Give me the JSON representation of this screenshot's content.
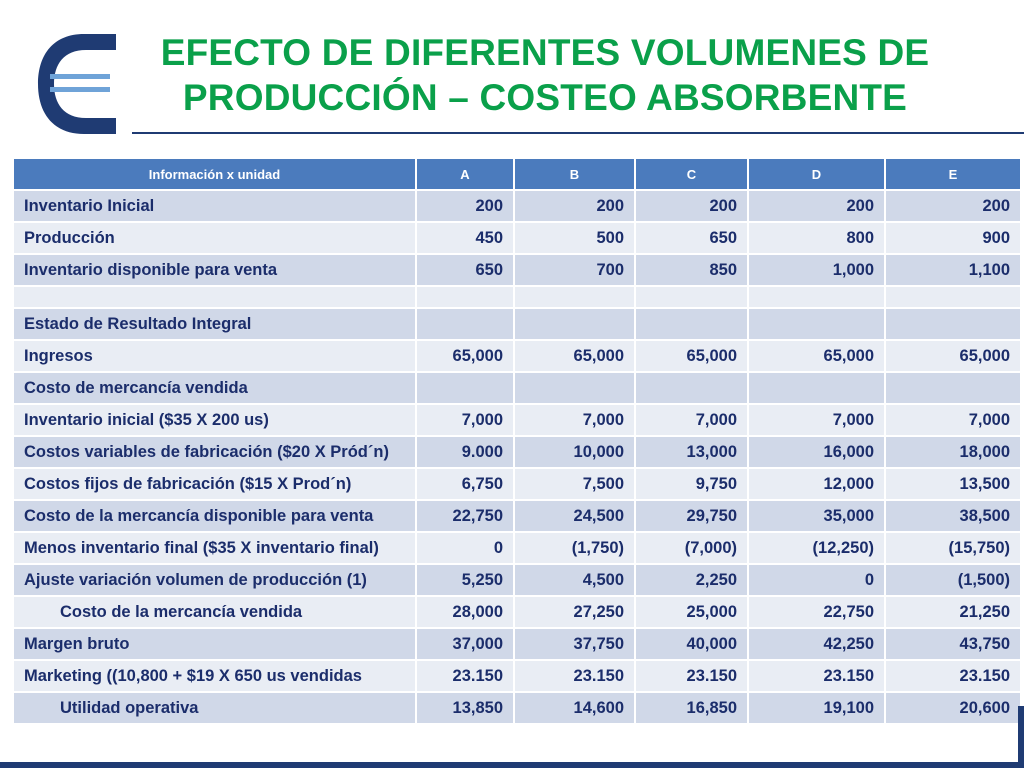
{
  "title": {
    "line1": "EFECTO DE DIFERENTES VOLUMENES DE",
    "line2": "PRODUCCIÓN – COSTEO ABSORBENTE"
  },
  "colors": {
    "title": "#0aa04a",
    "header_bg": "#4b7bbd",
    "row_odd": "#d0d8e8",
    "row_even": "#e9edf4",
    "text": "#1b2d6b",
    "brand_navy": "#1f3b73"
  },
  "logo": {
    "icon": "company-logo-icon"
  },
  "table": {
    "headers": [
      "Información x unidad",
      "A",
      "B",
      "C",
      "D",
      "E"
    ],
    "rows": [
      {
        "label": "Inventario Inicial",
        "values": [
          "200",
          "200",
          "200",
          "200",
          "200"
        ]
      },
      {
        "label": "Producción",
        "values": [
          "450",
          "500",
          "650",
          "800",
          "900"
        ]
      },
      {
        "label": "Inventario disponible para venta",
        "values": [
          "650",
          "700",
          "850",
          "1,000",
          "1,100"
        ]
      },
      {
        "label": "",
        "values": [
          "",
          "",
          "",
          "",
          ""
        ]
      },
      {
        "label": "Estado de Resultado Integral",
        "values": [
          "",
          "",
          "",
          "",
          ""
        ]
      },
      {
        "label": "Ingresos",
        "values": [
          "65,000",
          "65,000",
          "65,000",
          "65,000",
          "65,000"
        ]
      },
      {
        "label": "Costo de mercancía vendida",
        "values": [
          "",
          "",
          "",
          "",
          ""
        ]
      },
      {
        "label": "Inventario inicial ($35 X 200 us)",
        "values": [
          "7,000",
          "7,000",
          "7,000",
          "7,000",
          "7,000"
        ]
      },
      {
        "label": "Costos variables de fabricación ($20 X Pród´n)",
        "values": [
          "9.000",
          "10,000",
          "13,000",
          "16,000",
          "18,000"
        ]
      },
      {
        "label": "Costos fijos de fabricación ($15 X Prod´n)",
        "values": [
          "6,750",
          "7,500",
          "9,750",
          "12,000",
          "13,500"
        ]
      },
      {
        "label": "Costo de la mercancía disponible para venta",
        "values": [
          "22,750",
          "24,500",
          "29,750",
          "35,000",
          "38,500"
        ]
      },
      {
        "label": "Menos inventario final ($35 X inventario final)",
        "values": [
          "0",
          "(1,750)",
          "(7,000)",
          "(12,250)",
          "(15,750)"
        ]
      },
      {
        "label": "Ajuste variación volumen de producción (1)",
        "values": [
          "5,250",
          "4,500",
          "2,250",
          "0",
          "(1,500)"
        ]
      },
      {
        "label": "Costo de la mercancía vendida",
        "values": [
          "28,000",
          "27,250",
          "25,000",
          "22,750",
          "21,250"
        ]
      },
      {
        "label": "Margen bruto",
        "values": [
          "37,000",
          "37,750",
          "40,000",
          "42,250",
          "43,750"
        ]
      },
      {
        "label": "Marketing ((10,800 + $19 X 650 us vendidas",
        "values": [
          "23.150",
          "23.150",
          "23.150",
          "23.150",
          "23.150"
        ]
      },
      {
        "label": "Utilidad operativa",
        "values": [
          "13,850",
          "14,600",
          "16,850",
          "19,100",
          "20,600"
        ]
      }
    ]
  }
}
